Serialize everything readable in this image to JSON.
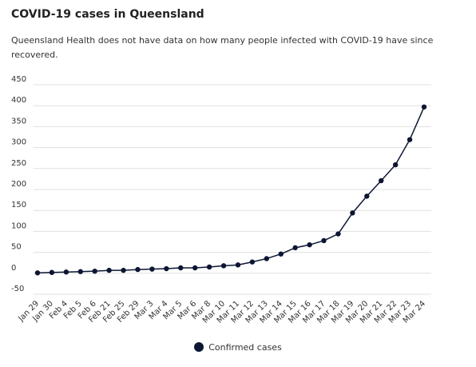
{
  "chart_data": {
    "type": "line",
    "title": "COVID-19 cases in Queensland",
    "subtitle": "Queensland Health does not have data on how many people infected with COVID-19 have since recovered.",
    "categories": [
      "Jan 29",
      "Jan 30",
      "Feb 4",
      "Feb 5",
      "Feb 6",
      "Feb 21",
      "Feb 25",
      "Feb 29",
      "Mar 3",
      "Mar 4",
      "Mar 5",
      "Mar 6",
      "Mar 8",
      "Mar 10",
      "Mar 11",
      "Mar 12",
      "Mar 13",
      "Mar 14",
      "Mar 15",
      "Mar 16",
      "Mar 17",
      "Mar 18",
      "Mar 19",
      "Mar 20",
      "Mar 21",
      "Mar 22",
      "Mar 23",
      "Mar 24"
    ],
    "series": [
      {
        "name": "Confirmed cases",
        "values": [
          1,
          2,
          3,
          4,
          5,
          7,
          7,
          9,
          10,
          11,
          13,
          13,
          15,
          18,
          20,
          27,
          35,
          46,
          61,
          68,
          78,
          94,
          144,
          184,
          221,
          259,
          319,
          397
        ]
      }
    ],
    "xlabel": "",
    "ylabel": "",
    "ylim": [
      -50,
      450
    ],
    "yticks": [
      450,
      400,
      350,
      300,
      250,
      200,
      150,
      100,
      50,
      0,
      -50
    ],
    "grid": true,
    "legend": "bottom-center",
    "color": "#0c1633",
    "grid_color": "#e0e0e0"
  }
}
